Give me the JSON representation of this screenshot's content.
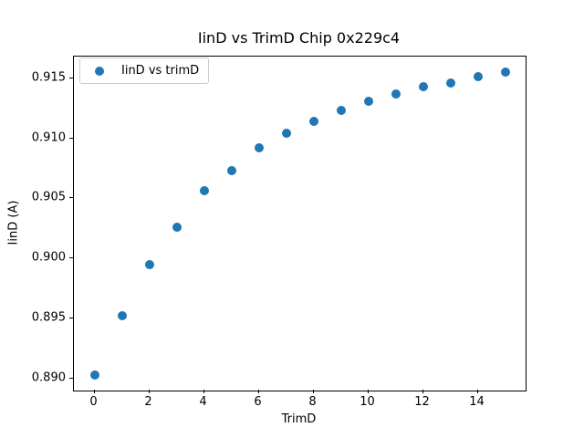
{
  "chart_data": {
    "type": "scatter",
    "title": "IinD vs TrimD Chip 0x229c4",
    "xlabel": "TrimD",
    "ylabel": "IinD (A)",
    "legend_entries": [
      "IinD vs trimD"
    ],
    "legend_position": "upper left",
    "grid": false,
    "marker_color": "#1f77b4",
    "x": [
      0,
      1,
      2,
      3,
      4,
      5,
      6,
      7,
      8,
      9,
      10,
      11,
      12,
      13,
      14,
      15
    ],
    "y": [
      0.8903,
      0.8952,
      0.8995,
      0.9026,
      0.9056,
      0.9073,
      0.9092,
      0.9104,
      0.9114,
      0.9123,
      0.9131,
      0.9137,
      0.9143,
      0.9146,
      0.9151,
      0.9155
    ],
    "xlim": [
      -0.75,
      15.75
    ],
    "ylim": [
      0.889,
      0.9168
    ],
    "xticks": [
      0,
      2,
      4,
      6,
      8,
      10,
      12,
      14
    ],
    "xtick_labels": [
      "0",
      "2",
      "4",
      "6",
      "8",
      "10",
      "12",
      "14"
    ],
    "yticks": [
      0.89,
      0.895,
      0.9,
      0.905,
      0.91,
      0.915
    ],
    "ytick_labels": [
      "0.890",
      "0.895",
      "0.900",
      "0.905",
      "0.910",
      "0.915"
    ]
  }
}
